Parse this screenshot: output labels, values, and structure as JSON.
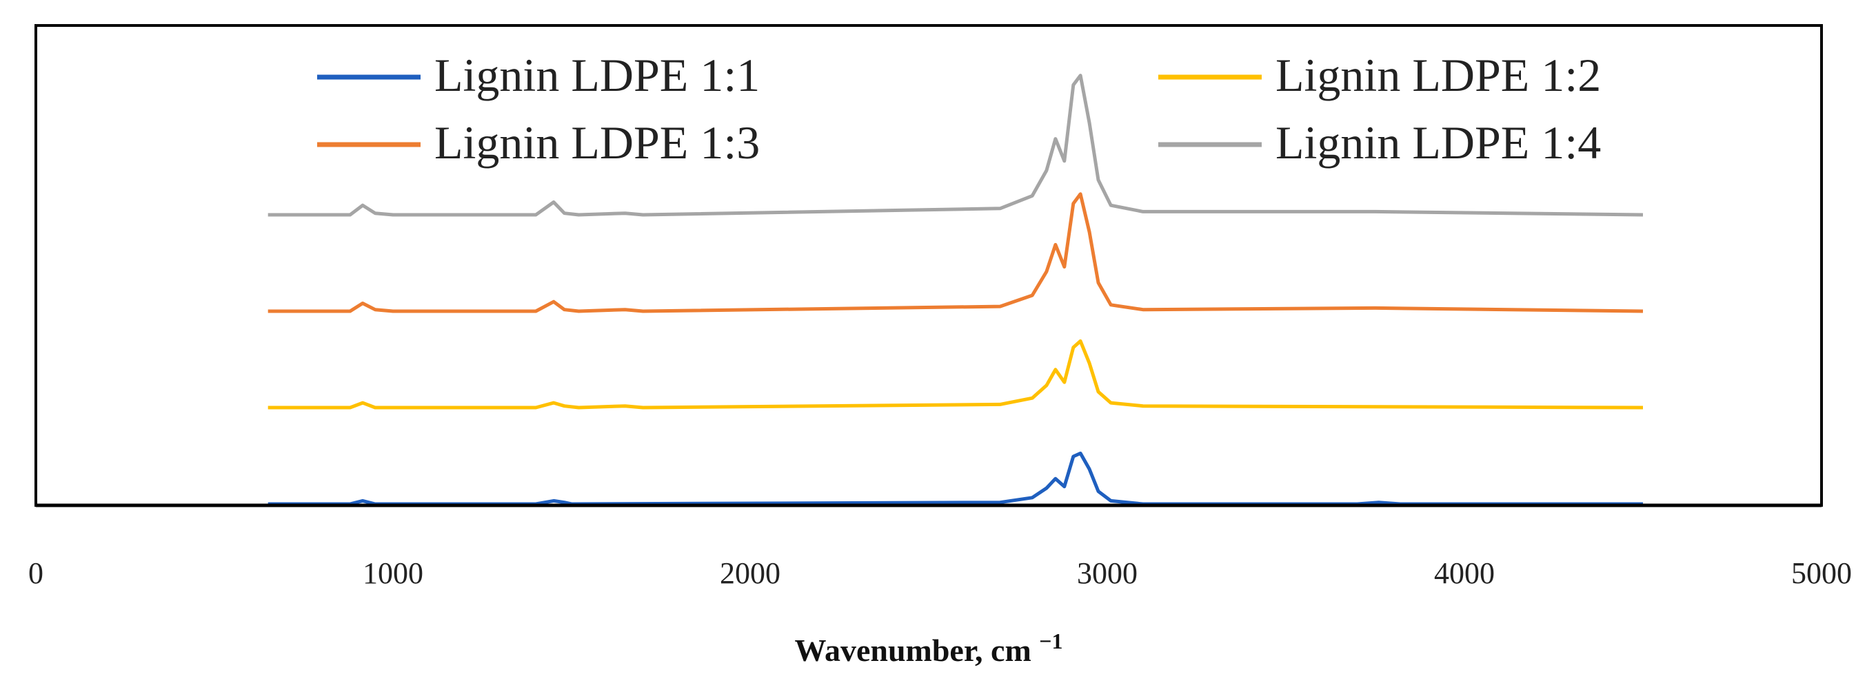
{
  "chart_data": {
    "type": "line",
    "title": "",
    "xlabel": "Wavenumber, cm",
    "xlabel_sup": "−1",
    "ylabel": "",
    "xlim": [
      0,
      5000
    ],
    "xticks": [
      0,
      1000,
      2000,
      3000,
      4000,
      5000
    ],
    "grid": false,
    "legend_position": "top",
    "series": [
      {
        "name": "Lignin LDPE 1:1",
        "color": "#1f5fbf",
        "offset": 0,
        "x": [
          650,
          880,
          915,
          950,
          1400,
          1450,
          1480,
          1500,
          2700,
          2790,
          2830,
          2855,
          2880,
          2905,
          2925,
          2950,
          2975,
          3010,
          3100,
          3700,
          3760,
          3820,
          4500
        ],
        "y": [
          0,
          0,
          2,
          0,
          0,
          2,
          1,
          0,
          1,
          4,
          10,
          16,
          11,
          30,
          32,
          22,
          8,
          2,
          0,
          0,
          1,
          0,
          0
        ]
      },
      {
        "name": "Lignin LDPE 1:2",
        "color": "#ffc000",
        "offset": 60,
        "x": [
          650,
          880,
          915,
          950,
          1000,
          1400,
          1450,
          1480,
          1520,
          1650,
          1700,
          2700,
          2790,
          2830,
          2855,
          2880,
          2905,
          2925,
          2950,
          2975,
          3010,
          3100,
          4500
        ],
        "y": [
          0,
          0,
          3,
          0,
          0,
          0,
          3,
          1,
          0,
          1,
          0,
          2,
          6,
          14,
          24,
          16,
          38,
          42,
          28,
          10,
          3,
          1,
          0
        ]
      },
      {
        "name": "Lignin LDPE 1:3",
        "color": "#ed7d31",
        "offset": 120,
        "x": [
          650,
          880,
          915,
          950,
          1000,
          1400,
          1450,
          1480,
          1520,
          1650,
          1700,
          2700,
          2790,
          2830,
          2855,
          2880,
          2905,
          2925,
          2950,
          2975,
          3010,
          3100,
          3750,
          4500
        ],
        "y": [
          0,
          0,
          5,
          1,
          0,
          0,
          6,
          1,
          0,
          1,
          0,
          3,
          10,
          25,
          42,
          28,
          68,
          74,
          50,
          18,
          4,
          1,
          2,
          0
        ]
      },
      {
        "name": "Lignin LDPE 1:4",
        "color": "#a5a5a5",
        "offset": 180,
        "x": [
          650,
          880,
          915,
          950,
          1000,
          1400,
          1450,
          1480,
          1520,
          1650,
          1700,
          2700,
          2790,
          2830,
          2855,
          2880,
          2905,
          2925,
          2950,
          2975,
          3010,
          3100,
          3750,
          4500
        ],
        "y": [
          0,
          0,
          6,
          1,
          0,
          0,
          8,
          1,
          0,
          1,
          0,
          4,
          12,
          28,
          48,
          34,
          82,
          88,
          58,
          22,
          6,
          2,
          2,
          0
        ]
      }
    ]
  }
}
